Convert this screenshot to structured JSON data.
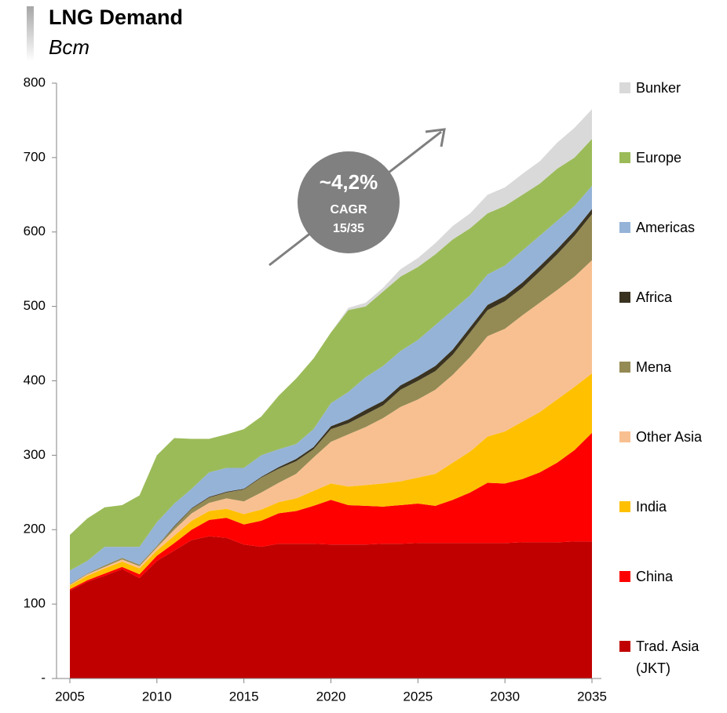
{
  "chart_data": {
    "type": "stacked_area",
    "title": "LNG Demand",
    "subtitle": "Bcm",
    "annotation": [
      "~4,2%",
      "CAGR",
      "15/35"
    ],
    "x": [
      2005,
      2006,
      2007,
      2008,
      2009,
      2010,
      2011,
      2012,
      2013,
      2014,
      2015,
      2016,
      2017,
      2018,
      2019,
      2020,
      2021,
      2022,
      2023,
      2024,
      2025,
      2026,
      2027,
      2028,
      2029,
      2030,
      2031,
      2032,
      2033,
      2034,
      2035
    ],
    "xlim": [
      2005,
      2035
    ],
    "xticks": [
      2005,
      2010,
      2015,
      2020,
      2025,
      2030,
      2035
    ],
    "ylim": [
      0,
      800
    ],
    "yticks": [
      {
        "value": 0,
        "label": "-"
      },
      100,
      200,
      300,
      400,
      500,
      600,
      700,
      800
    ],
    "series": [
      {
        "name": "Trad. Asia (JKT)",
        "color": "#c00000",
        "values": [
          118,
          130,
          138,
          147,
          135,
          158,
          172,
          186,
          191,
          189,
          180,
          177,
          181,
          181,
          181,
          180,
          180,
          180,
          181,
          181,
          182,
          182,
          182,
          182,
          182,
          182,
          183,
          183,
          183,
          184,
          184
        ]
      },
      {
        "name": "China",
        "color": "#ff0000",
        "values": [
          2,
          2,
          3,
          3,
          5,
          7,
          10,
          14,
          22,
          27,
          27,
          35,
          41,
          44,
          51,
          60,
          53,
          52,
          50,
          52,
          53,
          50,
          58,
          68,
          81,
          80,
          85,
          94,
          107,
          123,
          146
        ]
      },
      {
        "name": "India",
        "color": "#ffc000",
        "values": [
          5,
          6,
          7,
          7,
          8,
          7,
          10,
          12,
          12,
          12,
          14,
          15,
          15,
          17,
          20,
          22,
          25,
          28,
          31,
          32,
          35,
          43,
          50,
          55,
          62,
          70,
          77,
          81,
          85,
          85,
          80
        ]
      },
      {
        "name": "Other Asia",
        "color": "#f8c090",
        "values": [
          1,
          2,
          2,
          3,
          3,
          4,
          8,
          10,
          11,
          14,
          17,
          23,
          26,
          33,
          45,
          56,
          70,
          78,
          88,
          100,
          105,
          113,
          118,
          127,
          135,
          138,
          143,
          147,
          147,
          148,
          152
        ]
      },
      {
        "name": "Mena",
        "color": "#948a54",
        "values": [
          1,
          1,
          2,
          2,
          2,
          2,
          4,
          6,
          7,
          8,
          16,
          20,
          19,
          17,
          11,
          17,
          15,
          17,
          17,
          23,
          25,
          25,
          27,
          33,
          35,
          37,
          37,
          42,
          48,
          55,
          62
        ]
      },
      {
        "name": "Africa",
        "color": "#3a3320",
        "values": [
          0,
          0,
          0,
          0,
          0,
          0,
          1,
          1,
          1,
          1,
          1,
          1,
          2,
          3,
          3,
          4,
          5,
          6,
          6,
          6,
          6,
          7,
          7,
          7,
          7,
          7,
          7,
          7,
          7,
          7,
          7
        ]
      },
      {
        "name": "Americas",
        "color": "#95b3d7",
        "values": [
          18,
          17,
          25,
          15,
          24,
          32,
          30,
          26,
          33,
          32,
          28,
          29,
          24,
          20,
          24,
          31,
          37,
          44,
          47,
          46,
          49,
          55,
          53,
          43,
          41,
          41,
          43,
          41,
          38,
          33,
          31
        ]
      },
      {
        "name": "Europe",
        "color": "#9bbb59",
        "values": [
          48,
          57,
          53,
          56,
          69,
          90,
          88,
          67,
          45,
          45,
          52,
          52,
          72,
          88,
          95,
          95,
          110,
          95,
          100,
          100,
          98,
          95,
          95,
          90,
          82,
          80,
          75,
          70,
          70,
          65,
          63
        ]
      },
      {
        "name": "Bunker",
        "color": "#d9d9d9",
        "values": [
          0,
          0,
          0,
          0,
          0,
          0,
          0,
          0,
          0,
          0,
          0,
          0,
          0,
          0,
          0,
          0,
          3,
          5,
          5,
          10,
          12,
          15,
          18,
          20,
          25,
          25,
          28,
          30,
          35,
          40,
          40
        ]
      }
    ]
  }
}
